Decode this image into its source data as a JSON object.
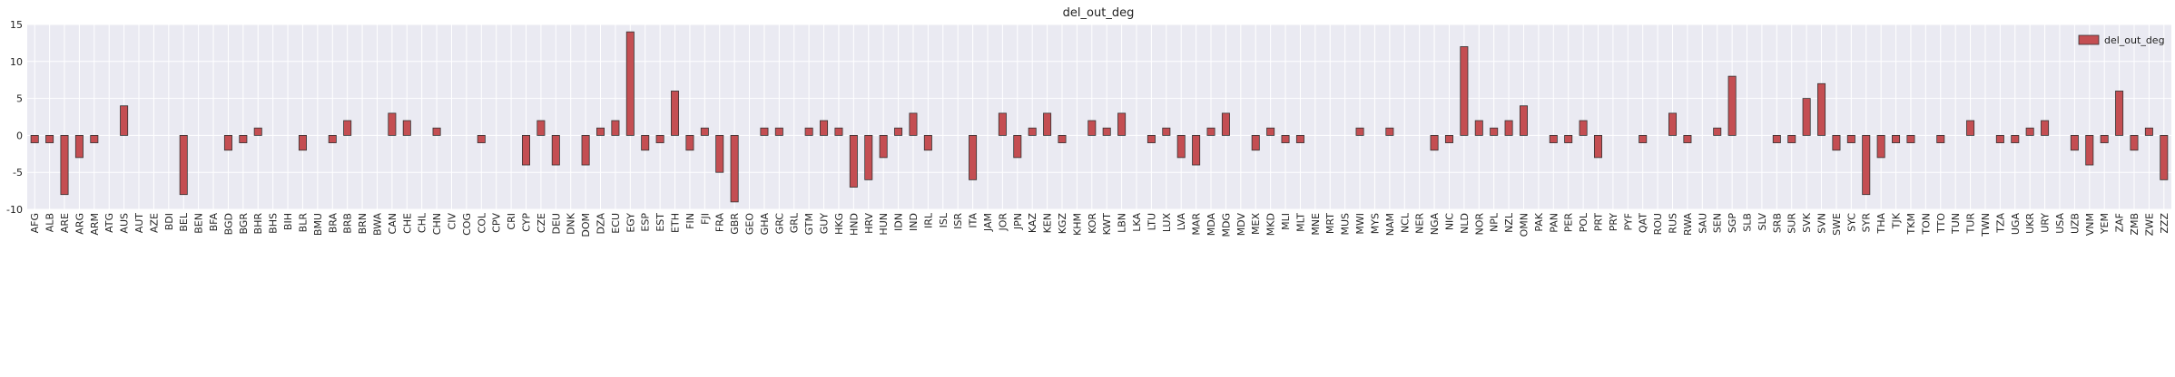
{
  "chart_data": {
    "type": "bar",
    "title": "del_out_deg",
    "categories": [
      "AFG",
      "ALB",
      "ARE",
      "ARG",
      "ARM",
      "ATG",
      "AUS",
      "AUT",
      "AZE",
      "BDI",
      "BEL",
      "BEN",
      "BFA",
      "BGD",
      "BGR",
      "BHR",
      "BHS",
      "BIH",
      "BLR",
      "BMU",
      "BRA",
      "BRB",
      "BRN",
      "BWA",
      "CAN",
      "CHE",
      "CHL",
      "CHN",
      "CIV",
      "COG",
      "COL",
      "CPV",
      "CRI",
      "CYP",
      "CZE",
      "DEU",
      "DNK",
      "DOM",
      "DZA",
      "ECU",
      "EGY",
      "ESP",
      "EST",
      "ETH",
      "FIN",
      "FJI",
      "FRA",
      "GBR",
      "GEO",
      "GHA",
      "GRC",
      "GRL",
      "GTM",
      "GUY",
      "HKG",
      "HND",
      "HRV",
      "HUN",
      "IDN",
      "IND",
      "IRL",
      "ISL",
      "ISR",
      "ITA",
      "JAM",
      "JOR",
      "JPN",
      "KAZ",
      "KEN",
      "KGZ",
      "KHM",
      "KOR",
      "KWT",
      "LBN",
      "LKA",
      "LTU",
      "LUX",
      "LVA",
      "MAR",
      "MDA",
      "MDG",
      "MDV",
      "MEX",
      "MKD",
      "MLI",
      "MLT",
      "MNE",
      "MRT",
      "MUS",
      "MWI",
      "MYS",
      "NAM",
      "NCL",
      "NER",
      "NGA",
      "NIC",
      "NLD",
      "NOR",
      "NPL",
      "NZL",
      "OMN",
      "PAK",
      "PAN",
      "PER",
      "POL",
      "PRT",
      "PRY",
      "PYF",
      "QAT",
      "ROU",
      "RUS",
      "RWA",
      "SAU",
      "SEN",
      "SGP",
      "SLB",
      "SLV",
      "SRB",
      "SUR",
      "SVK",
      "SVN",
      "SWE",
      "SYC",
      "SYR",
      "THA",
      "TJK",
      "TKM",
      "TON",
      "TTO",
      "TUN",
      "TUR",
      "TWN",
      "TZA",
      "UGA",
      "UKR",
      "URY",
      "USA",
      "UZB",
      "VNM",
      "YEM",
      "ZAF",
      "ZMB",
      "ZWE",
      "ZZZ"
    ],
    "series": [
      {
        "name": "del_out_deg",
        "color": "#c44e52",
        "values": [
          -1,
          -1,
          -8,
          -3,
          -1,
          0,
          4,
          0,
          0,
          0,
          -8,
          0,
          0,
          -2,
          -1,
          1,
          0,
          0,
          -2,
          0,
          -1,
          2,
          0,
          0,
          3,
          2,
          0,
          1,
          0,
          0,
          -1,
          0,
          0,
          -4,
          2,
          -4,
          0,
          -4,
          1,
          2,
          14,
          -2,
          -1,
          6,
          -2,
          1,
          -5,
          -9,
          0,
          1,
          1,
          0,
          1,
          2,
          1,
          -7,
          -6,
          -3,
          1,
          3,
          -2,
          0,
          0,
          -6,
          0,
          3,
          -3,
          1,
          3,
          -1,
          0,
          2,
          1,
          3,
          0,
          -1,
          1,
          -3,
          -4,
          1,
          3,
          0,
          -2,
          1,
          -1,
          -1,
          0,
          0,
          0,
          1,
          0,
          1,
          0,
          0,
          -2,
          -1,
          12,
          2,
          1,
          2,
          4,
          0,
          -1,
          -1,
          2,
          -3,
          0,
          0,
          -1,
          0,
          3,
          -1,
          0,
          1,
          8,
          0,
          0,
          -1,
          -1,
          5,
          7,
          -2,
          -1,
          -8,
          -3,
          -1,
          -1,
          0,
          -1,
          0,
          2,
          0,
          -1,
          -1,
          1,
          2,
          0,
          -2,
          -4,
          -1,
          6,
          -2,
          1,
          -6
        ]
      }
    ],
    "ylim": [
      -10,
      15
    ],
    "yticks": [
      -10,
      -5,
      0,
      5,
      10,
      15
    ],
    "grid": true,
    "legend": "upper right"
  }
}
